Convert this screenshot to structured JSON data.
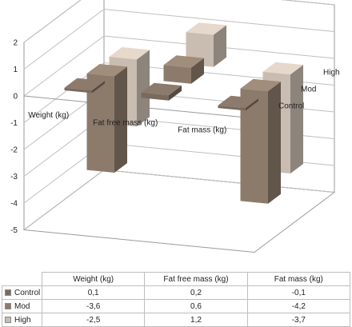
{
  "chart_data": {
    "type": "bar",
    "variant": "3d-clustered-column",
    "title": "",
    "xlabel": "",
    "ylabel": "",
    "categories": [
      "Weight (kg)",
      "Fat free mass (kg)",
      "Fat mass (kg)"
    ],
    "series": [
      {
        "name": "Control",
        "values": [
          0.1,
          0.2,
          -0.1
        ],
        "color": "#7a6a5e",
        "value_labels": [
          "0,1",
          "0,2",
          "-0,1"
        ]
      },
      {
        "name": "Mod",
        "values": [
          -3.6,
          0.6,
          -4.2
        ],
        "color": "#8c7b6b",
        "value_labels": [
          "-3,6",
          "0,6",
          "-4,2"
        ]
      },
      {
        "name": "High",
        "values": [
          -2.5,
          1.2,
          -3.7
        ],
        "color": "#c9bcb1",
        "value_labels": [
          "-2,5",
          "1,2",
          "-3,7"
        ]
      }
    ],
    "y_ticks": [
      2,
      1,
      0,
      -1,
      -2,
      -3,
      -4,
      -5
    ],
    "ylim": [
      -5,
      2
    ],
    "grid": true,
    "depth_axis_labels": [
      "High",
      "Mod",
      "Control"
    ],
    "data_table": true
  }
}
